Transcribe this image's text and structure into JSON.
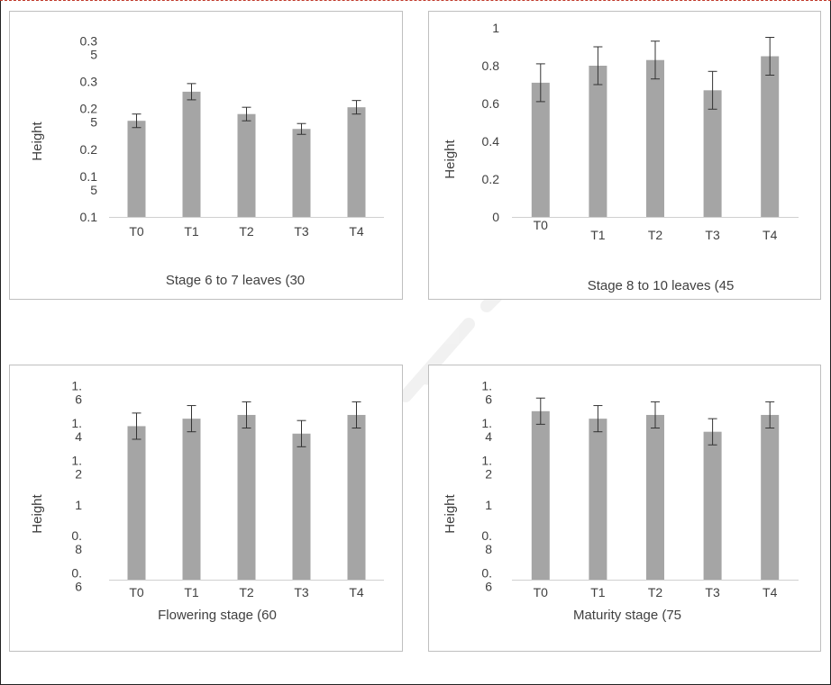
{
  "chart_data": [
    {
      "type": "bar",
      "title": "Stage 6 to 7 leaves (30",
      "ylabel": "Height",
      "categories": [
        "T0",
        "T1",
        "T2",
        "T3",
        "T4"
      ],
      "values": [
        0.242,
        0.285,
        0.252,
        0.23,
        0.262
      ],
      "errors": [
        0.01,
        0.012,
        0.01,
        0.008,
        0.01
      ],
      "ylim": [
        0.1,
        0.35
      ],
      "y_ticks": [
        {
          "value": 0.1,
          "lines": [
            "0.1"
          ]
        },
        {
          "value": 0.15,
          "lines": [
            "0.1",
            "5"
          ]
        },
        {
          "value": 0.2,
          "lines": [
            "0.2"
          ]
        },
        {
          "value": 0.25,
          "lines": [
            "0.2",
            "5"
          ]
        },
        {
          "value": 0.3,
          "lines": [
            "0.3"
          ]
        },
        {
          "value": 0.35,
          "lines": [
            "0.3",
            "5"
          ]
        }
      ],
      "grid": false,
      "bar_color": "#a5a5a5"
    },
    {
      "type": "bar",
      "title": "Stage 8 to 10 leaves (45",
      "ylabel": "Height",
      "categories": [
        "T0",
        "T1",
        "T2",
        "T3",
        "T4"
      ],
      "values": [
        0.71,
        0.8,
        0.83,
        0.67,
        0.85
      ],
      "errors": [
        0.1,
        0.1,
        0.1,
        0.1,
        0.1
      ],
      "ylim": [
        0,
        1
      ],
      "y_ticks": [
        {
          "value": 0,
          "lines": [
            "0"
          ]
        },
        {
          "value": 0.2,
          "lines": [
            "0.2"
          ]
        },
        {
          "value": 0.4,
          "lines": [
            "0.4"
          ]
        },
        {
          "value": 0.6,
          "lines": [
            "0.6"
          ]
        },
        {
          "value": 0.8,
          "lines": [
            "0.8"
          ]
        },
        {
          "value": 1,
          "lines": [
            "1"
          ]
        }
      ],
      "grid": false,
      "bar_color": "#a5a5a5"
    },
    {
      "type": "bar",
      "title": "Flowering stage (60",
      "ylabel": "Height",
      "categories": [
        "T0",
        "T1",
        "T2",
        "T3",
        "T4"
      ],
      "values": [
        1.42,
        1.46,
        1.48,
        1.38,
        1.48
      ],
      "errors": [
        0.07,
        0.07,
        0.07,
        0.07,
        0.07
      ],
      "ylim": [
        0.6,
        1.6
      ],
      "y_ticks": [
        {
          "value": 0.6,
          "lines": [
            "0.",
            "6"
          ]
        },
        {
          "value": 0.8,
          "lines": [
            "0.",
            "8"
          ]
        },
        {
          "value": 1,
          "lines": [
            "1"
          ]
        },
        {
          "value": 1.2,
          "lines": [
            "1.",
            "2"
          ]
        },
        {
          "value": 1.4,
          "lines": [
            "1.",
            "4"
          ]
        },
        {
          "value": 1.6,
          "lines": [
            "1.",
            "6"
          ]
        }
      ],
      "grid": false,
      "bar_color": "#a5a5a5"
    },
    {
      "type": "bar",
      "title": "Maturity stage (75",
      "ylabel": "Height",
      "categories": [
        "T0",
        "T1",
        "T2",
        "T3",
        "T4"
      ],
      "values": [
        1.5,
        1.46,
        1.48,
        1.39,
        1.48
      ],
      "errors": [
        0.07,
        0.07,
        0.07,
        0.07,
        0.07
      ],
      "ylim": [
        0.6,
        1.6
      ],
      "y_ticks": [
        {
          "value": 0.6,
          "lines": [
            "0.",
            "6"
          ]
        },
        {
          "value": 0.8,
          "lines": [
            "0.",
            "8"
          ]
        },
        {
          "value": 1,
          "lines": [
            "1"
          ]
        },
        {
          "value": 1.2,
          "lines": [
            "1.",
            "2"
          ]
        },
        {
          "value": 1.4,
          "lines": [
            "1.",
            "4"
          ]
        },
        {
          "value": 1.6,
          "lines": [
            "1.",
            "6"
          ]
        }
      ],
      "grid": false,
      "bar_color": "#a5a5a5"
    }
  ]
}
